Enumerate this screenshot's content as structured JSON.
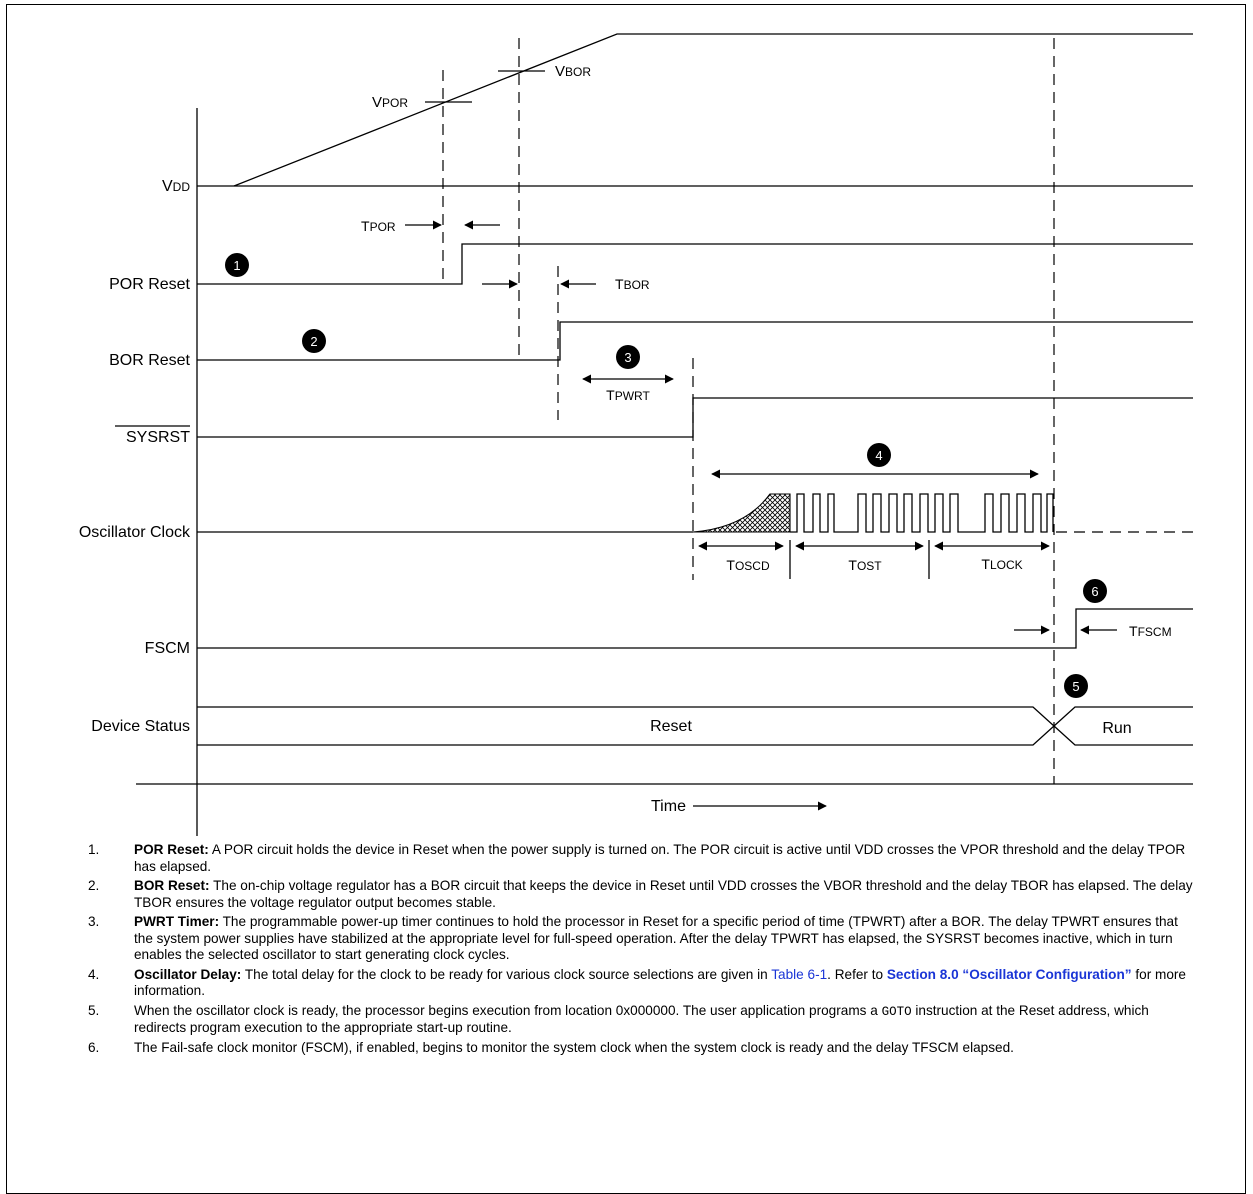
{
  "signals": {
    "vdd": "VDD",
    "por_reset": "POR Reset",
    "bor_reset": "BOR Reset",
    "sysrst": "SYSRST",
    "osc_clock": "Oscillator Clock",
    "fscm": "FSCM",
    "device_status": "Device Status"
  },
  "labels": {
    "vpor": "VPOR",
    "vbor": "VBOR",
    "tpor": "TPOR",
    "tbor": "TBOR",
    "tpwrt": "TPWRT",
    "toscd": "TOSCD",
    "tost": "TOST",
    "tlock": "TLOCK",
    "tfscm": "TFSCM",
    "reset": "Reset",
    "run": "Run",
    "time": "Time"
  },
  "markers": [
    "1",
    "2",
    "3",
    "4",
    "5",
    "6"
  ],
  "notes": [
    {
      "num": "1.",
      "title": "POR Reset:",
      "text": "A POR circuit holds the device in Reset when the power supply is turned on. The POR circuit is active until VDD crosses the VPOR threshold and the delay TPOR has elapsed."
    },
    {
      "num": "2.",
      "title": "BOR Reset:",
      "text": "The on-chip voltage regulator has a BOR circuit that keeps the device in Reset until VDD crosses the VBOR threshold and the delay TBOR has elapsed. The delay TBOR ensures the voltage regulator output becomes stable."
    },
    {
      "num": "3.",
      "title": "PWRT Timer:",
      "text": "The programmable power-up timer continues to hold the processor in Reset for a specific period of time (TPWRT) after a BOR. The delay TPWRT ensures that the system power supplies have stabilized at the appropriate level for full-speed operation. After the delay TPWRT has elapsed, the SYSRST becomes inactive, which in turn enables the selected oscillator to start generating clock cycles."
    },
    {
      "num": "4.",
      "title": "Oscillator Delay:",
      "text_a": "The total delay for the clock to be ready for various clock source selections are given in",
      "link_a": "Table 6-1",
      "text_b": ". Refer to",
      "link_b": "Section 8.0 “Oscillator Configuration”",
      "text_c": "for more information."
    },
    {
      "num": "5.",
      "text_a": "When the oscillator clock is ready, the processor begins execution from location 0x000000. The user application programs a",
      "code": "GOTO",
      "text_b": "instruction at the Reset address, which redirects program execution to the appropriate start-up routine."
    },
    {
      "num": "6.",
      "text": "The Fail-safe clock monitor (FSCM), if enabled, begins to monitor the system clock when the system clock is ready and the delay TFSCM elapsed."
    }
  ],
  "colors": {
    "link": "#1a35d6",
    "line": "#000000"
  }
}
